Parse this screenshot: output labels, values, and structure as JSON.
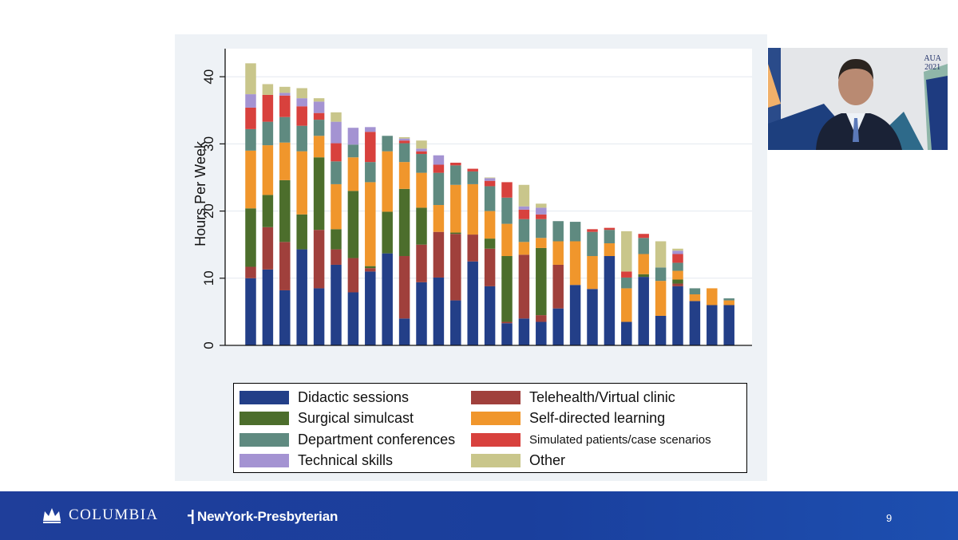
{
  "slide": {
    "page_number": "9",
    "footer": {
      "columbia": "COLUMBIA",
      "nyp": "NewYork-Presbyterian"
    },
    "webcam_badge": {
      "line1": "AUA",
      "line2": "2021"
    }
  },
  "colors": {
    "footer_bar": "#1f3e9a",
    "chart_background": "#eef2f6"
  },
  "chart_data": {
    "type": "bar",
    "stacked": true,
    "ylabel": "Hours Per Week",
    "xlabel": "",
    "ylim": [
      0,
      44
    ],
    "yticks": [
      0,
      10,
      20,
      30,
      40
    ],
    "grid": true,
    "legend_position": "bottom",
    "series": [
      {
        "name": "Didactic sessions",
        "color": "#233f88",
        "values": [
          10,
          11.3,
          8.2,
          14.3,
          8.5,
          12,
          7.9,
          11,
          13.7,
          4,
          9.4,
          10.1,
          6.7,
          12.5,
          8.8,
          3.3,
          4,
          3.5,
          5.5,
          9,
          8.4,
          13.3,
          3.5,
          10.2,
          4.4,
          8.8,
          6.6,
          6,
          6
        ]
      },
      {
        "name": "Telehealth/Virtual clinic",
        "color": "#a0403c",
        "values": [
          1.7,
          6.3,
          7.2,
          0,
          8.7,
          2.3,
          5.1,
          0.5,
          0,
          9.3,
          5.6,
          6.8,
          9.9,
          4,
          5.6,
          0.2,
          9.5,
          1,
          6.5,
          0,
          0,
          0,
          0,
          0,
          0,
          0.4,
          0,
          0,
          0
        ]
      },
      {
        "name": "Surgical simulcast",
        "color": "#4c6e2c",
        "values": [
          8.7,
          4.8,
          9.2,
          5.2,
          10.8,
          3,
          10,
          0.3,
          6.2,
          10,
          5.5,
          0,
          0.2,
          0,
          1.5,
          9.8,
          0,
          10,
          0,
          0,
          0,
          0,
          0,
          0.4,
          0,
          0.6,
          0,
          0,
          0
        ]
      },
      {
        "name": "Self-directed learning",
        "color": "#f0962c",
        "values": [
          8.6,
          7.4,
          5.6,
          9.4,
          3.2,
          6.7,
          5,
          12.5,
          9,
          4,
          5.2,
          4,
          7.1,
          7.5,
          4.1,
          4.8,
          1.9,
          1.5,
          3.5,
          6.5,
          4.9,
          1.9,
          5,
          3,
          5.2,
          1.3,
          1,
          2.5,
          0.7
        ]
      },
      {
        "name": "Department conferences",
        "color": "#5f8a80",
        "values": [
          3.2,
          3.5,
          3.8,
          3.8,
          2.4,
          3.4,
          1.9,
          3,
          2.3,
          2.8,
          2.8,
          4.8,
          2.9,
          1.9,
          3.7,
          3.9,
          3.4,
          2.8,
          3,
          2.9,
          3.6,
          2,
          1.6,
          2.4,
          2,
          1.2,
          0.9,
          0,
          0.3
        ]
      },
      {
        "name": "Simulated patients/case scenarios",
        "color": "#d8413d",
        "values": [
          3.2,
          4,
          3.2,
          2.9,
          1,
          2.7,
          0,
          4.5,
          0,
          0.4,
          0.4,
          1.2,
          0.4,
          0.4,
          0.8,
          2.3,
          1.4,
          0.7,
          0,
          0,
          0.4,
          0.3,
          0.9,
          0.6,
          0,
          1.3,
          0,
          0,
          0
        ]
      },
      {
        "name": "Technical skills",
        "color": "#a493d2",
        "values": [
          2,
          0,
          0.4,
          1.2,
          1.7,
          3.2,
          2.5,
          0.7,
          0,
          0.3,
          0.4,
          1.4,
          0,
          0,
          0.4,
          0,
          0.5,
          1,
          0,
          0,
          0,
          0,
          0,
          0,
          0,
          0.5,
          0,
          0,
          0
        ]
      },
      {
        "name": "Other",
        "color": "#c9c68b",
        "values": [
          4.6,
          1.6,
          0.9,
          1.5,
          0.5,
          1.4,
          0,
          0,
          0,
          0.2,
          1.2,
          0,
          0,
          0,
          0.1,
          0,
          3.2,
          0.6,
          0,
          0,
          0,
          0,
          6,
          0,
          3.9,
          0.3,
          0,
          0,
          0
        ]
      }
    ]
  }
}
